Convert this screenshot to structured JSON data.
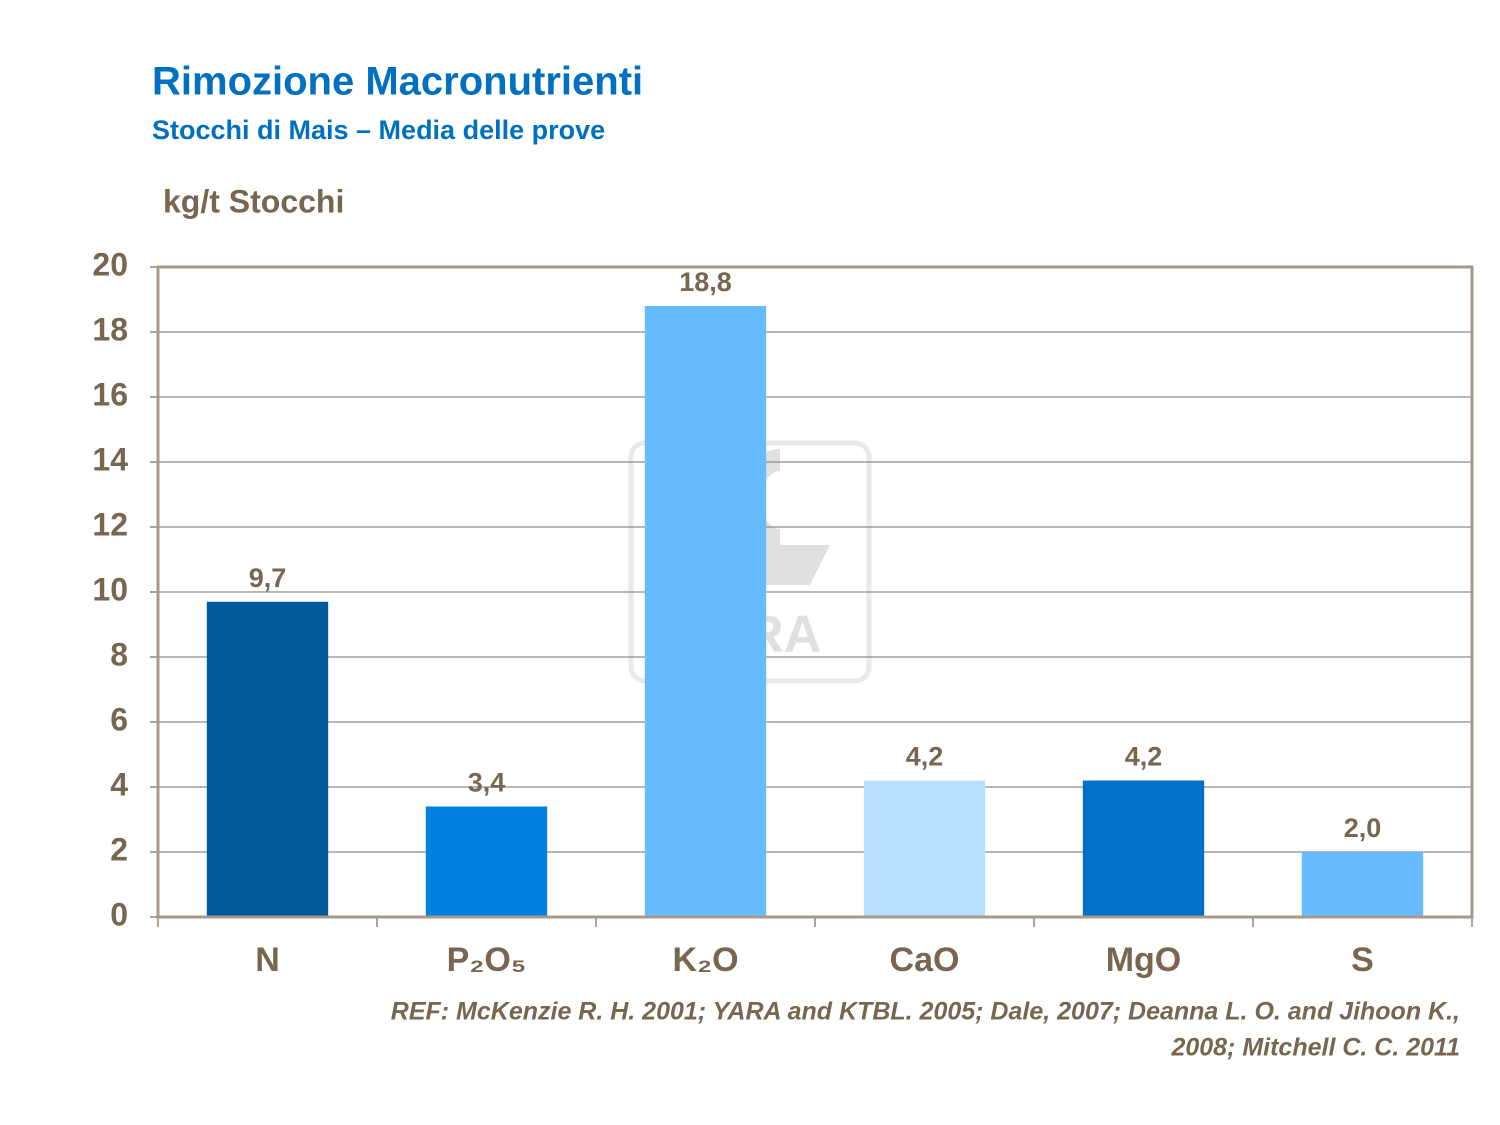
{
  "chart_data": {
    "type": "bar",
    "title": "Rimozione Macronutrienti",
    "subtitle": "Stocchi di Mais – Media delle prove",
    "y_label": "kg/t Stocchi",
    "categories": [
      "N",
      "P₂O₅",
      "K₂O",
      "CaO",
      "MgO",
      "S"
    ],
    "values": [
      9.7,
      3.4,
      18.8,
      4.2,
      4.2,
      2.0
    ],
    "value_labels": [
      "9,7",
      "3,4",
      "18,8",
      "4,2",
      "4,2",
      "2,0"
    ],
    "colors": [
      "#005a9c",
      "#0080e0",
      "#66bbff",
      "#b8dfff",
      "#0070c8",
      "#66bbff"
    ],
    "ylim": [
      0,
      20
    ],
    "yticks": [
      0,
      2,
      4,
      6,
      8,
      10,
      12,
      14,
      16,
      18,
      20
    ],
    "grid": true,
    "watermark": "YARA",
    "reference": [
      "REF: McKenzie R. H. 2001; YARA and KTBL. 2005; Dale, 2007; Deanna L. O. and Jihoon K.,",
      "2008; Mitchell C. C. 2011"
    ]
  }
}
